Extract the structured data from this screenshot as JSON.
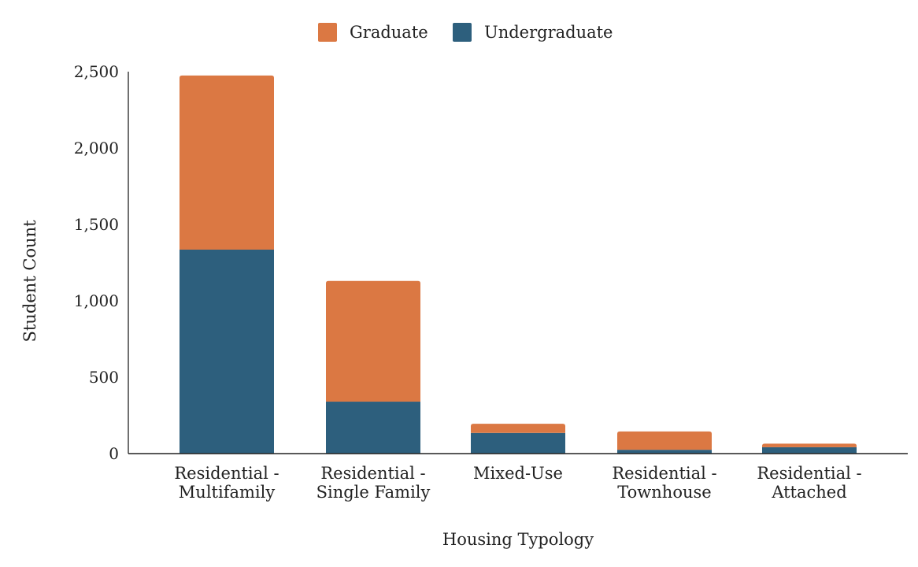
{
  "chart_data": {
    "type": "bar",
    "stacked": true,
    "categories": [
      [
        "Residential -",
        "Multifamily"
      ],
      [
        "Residential -",
        "Single Family"
      ],
      [
        "Mixed-Use"
      ],
      [
        "Residential -",
        "Townhouse"
      ],
      [
        "Residential -",
        "Attached"
      ]
    ],
    "series": [
      {
        "name": "Undergraduate",
        "color": "#2d5f7d",
        "values": [
          1335,
          340,
          135,
          25,
          42
        ]
      },
      {
        "name": "Graduate",
        "color": "#db7843",
        "values": [
          1140,
          790,
          60,
          120,
          23
        ]
      }
    ],
    "legend_order": [
      "Graduate",
      "Undergraduate"
    ],
    "legend_position": "top",
    "xlabel": "Housing Typology",
    "ylabel": "Student Count",
    "ylim": [
      0,
      2500
    ],
    "yticks": [
      0,
      500,
      1000,
      1500,
      2000,
      2500
    ],
    "ytick_labels": [
      "0",
      "500",
      "1,000",
      "1,500",
      "2,000",
      "2,500"
    ],
    "grid": false
  }
}
